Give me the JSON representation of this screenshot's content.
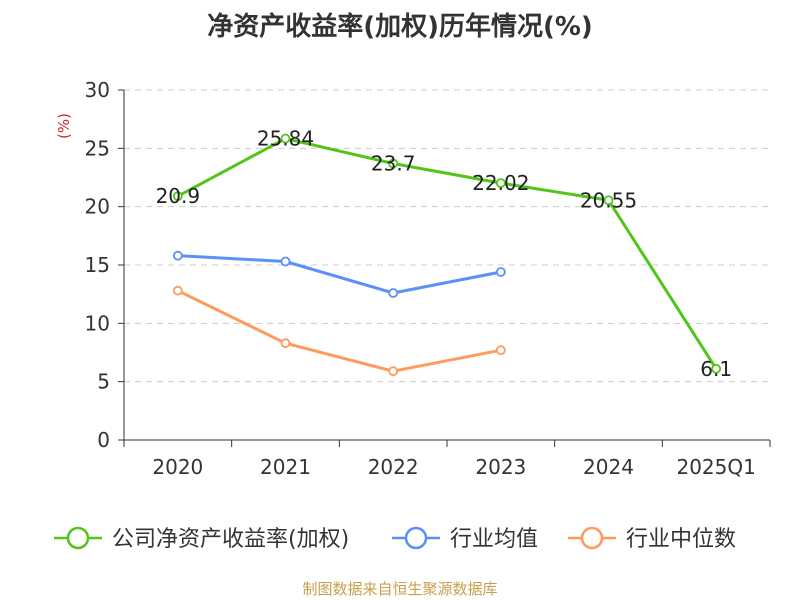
{
  "chart_data": {
    "type": "line",
    "title": "净资产收益率(加权)历年情况(%)",
    "ylabel": "(%)",
    "xlabel": "",
    "ylim": [
      0,
      30
    ],
    "yticks": [
      0,
      5,
      10,
      15,
      20,
      25,
      30
    ],
    "categories": [
      "2020",
      "2021",
      "2022",
      "2023",
      "2024",
      "2025Q1"
    ],
    "grid": true,
    "legend_position": "bottom",
    "series": [
      {
        "name": "公司净资产收益率(加权)",
        "color": "#52c41a",
        "values": [
          20.9,
          25.84,
          23.7,
          22.02,
          20.55,
          6.1
        ],
        "labels": true
      },
      {
        "name": "行业均值",
        "color": "#5b8ff9",
        "values": [
          15.8,
          15.3,
          12.6,
          14.4,
          null,
          null
        ],
        "labels": false
      },
      {
        "name": "行业中位数",
        "color": "#ff9a5c",
        "values": [
          12.8,
          8.3,
          5.9,
          7.7,
          null,
          null
        ],
        "labels": false
      }
    ]
  },
  "footer": {
    "source": "制图数据来自恒生聚源数据库"
  }
}
